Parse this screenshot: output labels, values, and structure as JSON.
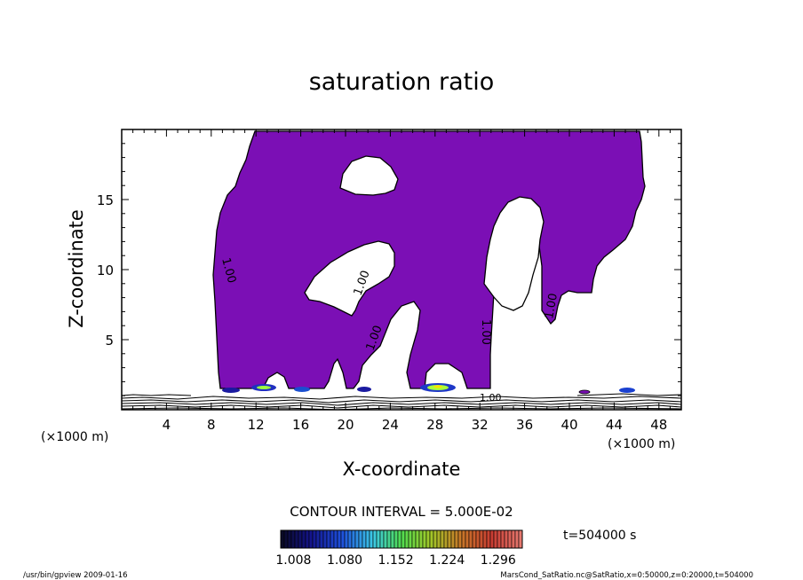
{
  "chart_data": {
    "type": "heatmap",
    "title": "saturation ratio",
    "xlabel": "X-coordinate",
    "ylabel": "Z-coordinate",
    "x_unit_left": "(×1000 m)",
    "x_unit_right": "(×1000 m)",
    "xlim": [
      0,
      50
    ],
    "ylim": [
      0,
      20
    ],
    "x_ticks": [
      4,
      8,
      12,
      16,
      20,
      24,
      28,
      32,
      36,
      40,
      44,
      48
    ],
    "y_ticks": [
      5,
      10,
      15
    ],
    "contour_interval": "CONTOUR INTERVAL = 5.000E-02",
    "contour_labels": [
      "1.00",
      "1.00",
      "1.00",
      "1.00",
      "1.00",
      "1.00"
    ],
    "colorbar": {
      "tick_labels": [
        "1.008",
        "1.080",
        "1.152",
        "1.224",
        "1.296"
      ],
      "range": [
        0.99,
        1.33
      ]
    },
    "time_label": "t=504000 s",
    "footer_left": "/usr/bin/gpview   2009-01-16",
    "footer_right": "MarsCond_SatRatio.nc@SatRatio,x=0:50000,z=0:20000,t=504000",
    "grid": false,
    "legend": "colorbar-bottom",
    "colors": {
      "fill_main": "#7b0fb5",
      "outline": "#000000",
      "background": "#ffffff"
    }
  }
}
